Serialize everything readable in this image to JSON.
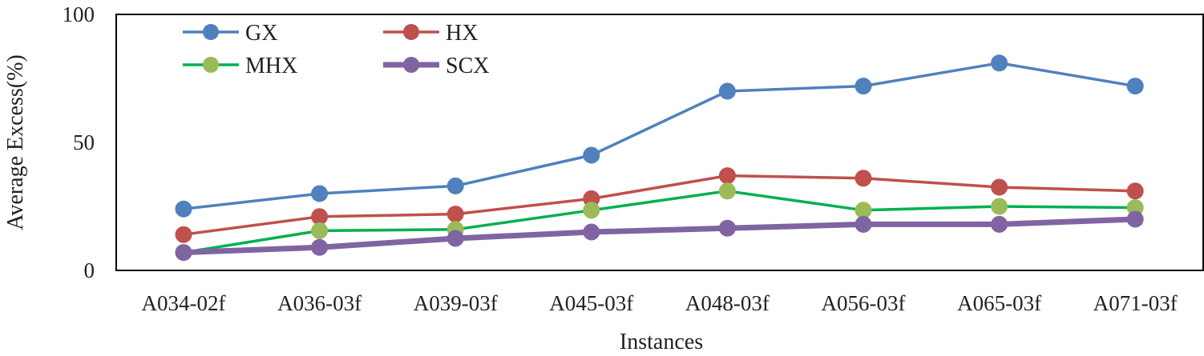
{
  "chart_data": {
    "type": "line",
    "xlabel": "Instances",
    "ylabel": "Average Excess(%)",
    "ylim": [
      0,
      100
    ],
    "yticks": [
      "0",
      "50",
      "100"
    ],
    "grid": false,
    "legend_position": "top-left",
    "categories": [
      "A034-02f",
      "A036-03f",
      "A039-03f",
      "A045-03f",
      "A048-03f",
      "A056-03f",
      "A065-03f",
      "A071-03f"
    ],
    "series": [
      {
        "name": "GX",
        "color": "#4F81BD",
        "marker": "#4F81BD",
        "values": [
          24,
          30,
          33,
          45,
          70,
          72,
          81,
          72
        ]
      },
      {
        "name": "HX",
        "color": "#C0504D",
        "marker": "#C0504D",
        "values": [
          14,
          21,
          22,
          28,
          37,
          36,
          32.5,
          31
        ]
      },
      {
        "name": "MHX",
        "color": "#00B050",
        "marker": "#9BBB59",
        "values": [
          7,
          15.5,
          16,
          23.5,
          31,
          23.5,
          25,
          24.5
        ]
      },
      {
        "name": "SCX",
        "color": "#8064A2",
        "marker": "#8064A2",
        "values": [
          7,
          9,
          12.5,
          15,
          16.5,
          18,
          18,
          20
        ]
      }
    ]
  }
}
